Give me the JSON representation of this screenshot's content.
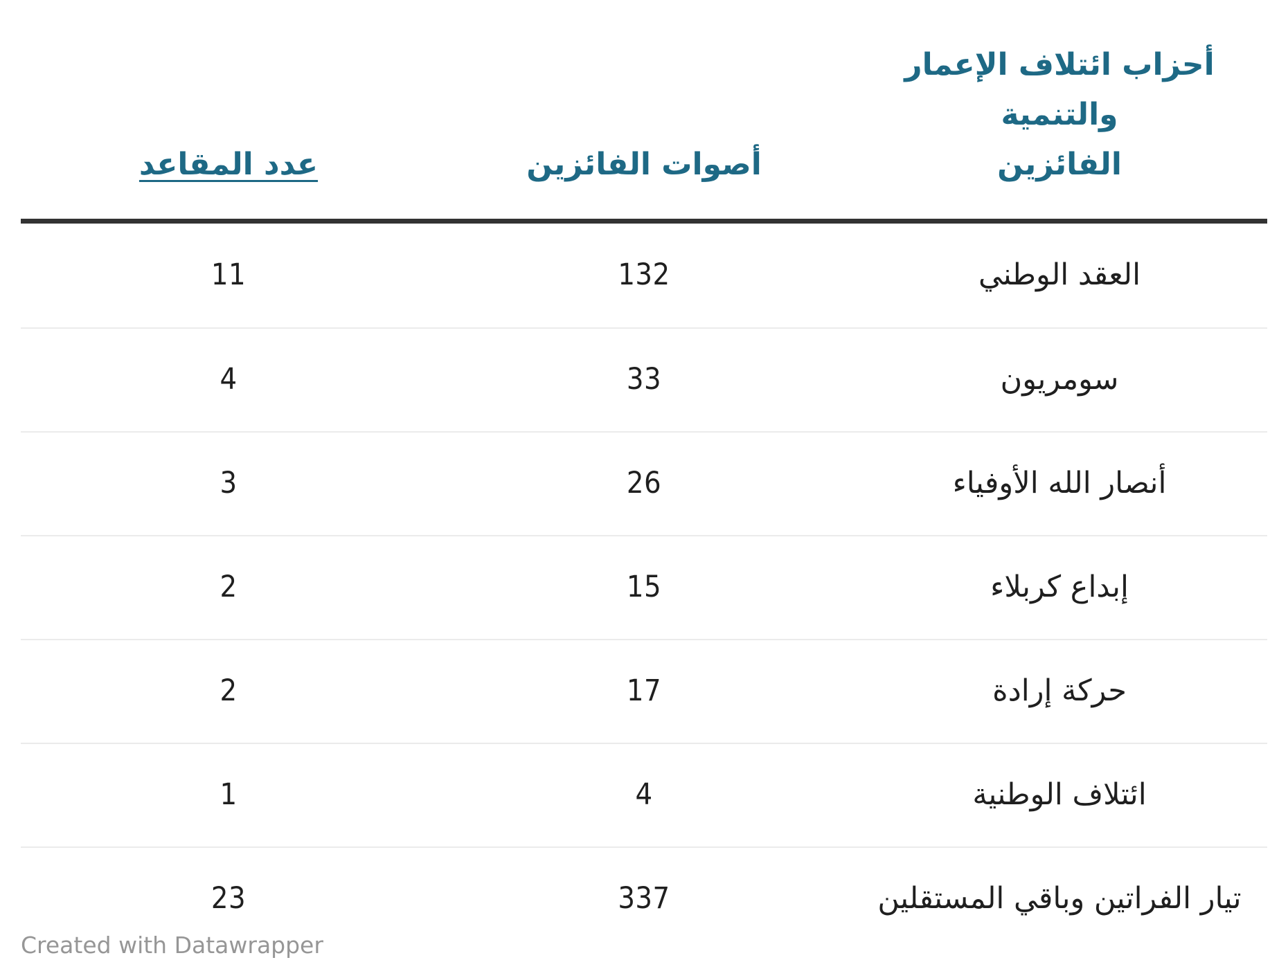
{
  "colors": {
    "header_text": "#1e6985",
    "body_text": "#1f1f1f",
    "header_rule": "#333333",
    "row_divider": "#ebebeb",
    "footer_text": "#969696",
    "background": "#ffffff"
  },
  "table": {
    "header": {
      "party_line1": "أحزاب ائتلاف الإعمار والتنمية",
      "party_line2": "الفائزين",
      "votes": "أصوات الفائزين",
      "seats": "عدد المقاعد"
    },
    "rows": [
      {
        "party": "العقد الوطني",
        "votes": "132",
        "seats": "11"
      },
      {
        "party": "سومريون",
        "votes": "33",
        "seats": "4"
      },
      {
        "party": "أنصار الله الأوفياء",
        "votes": "26",
        "seats": "3"
      },
      {
        "party": "إبداع كربلاء",
        "votes": "15",
        "seats": "2"
      },
      {
        "party": "حركة إرادة",
        "votes": "17",
        "seats": "2"
      },
      {
        "party": "ائتلاف الوطنية",
        "votes": "4",
        "seats": "1"
      },
      {
        "party": "تيار الفراتين وباقي المستقلين",
        "votes": "337",
        "seats": "23"
      }
    ]
  },
  "chart_data": {
    "type": "table",
    "columns": [
      "أحزاب ائتلاف الإعمار والتنمية الفائزين",
      "أصوات الفائزين",
      "عدد المقاعد"
    ],
    "rows": [
      [
        "العقد الوطني",
        132,
        11
      ],
      [
        "سومريون",
        33,
        4
      ],
      [
        "أنصار الله الأوفياء",
        26,
        3
      ],
      [
        "إبداع كربلاء",
        15,
        2
      ],
      [
        "حركة إرادة",
        17,
        2
      ],
      [
        "ائتلاف الوطنية",
        4,
        1
      ],
      [
        "تيار الفراتين وباقي المستقلين",
        337,
        23
      ]
    ],
    "title": "",
    "legend_position": "none",
    "grid": "row-dividers"
  },
  "footer": {
    "credit": "Created with Datawrapper"
  }
}
